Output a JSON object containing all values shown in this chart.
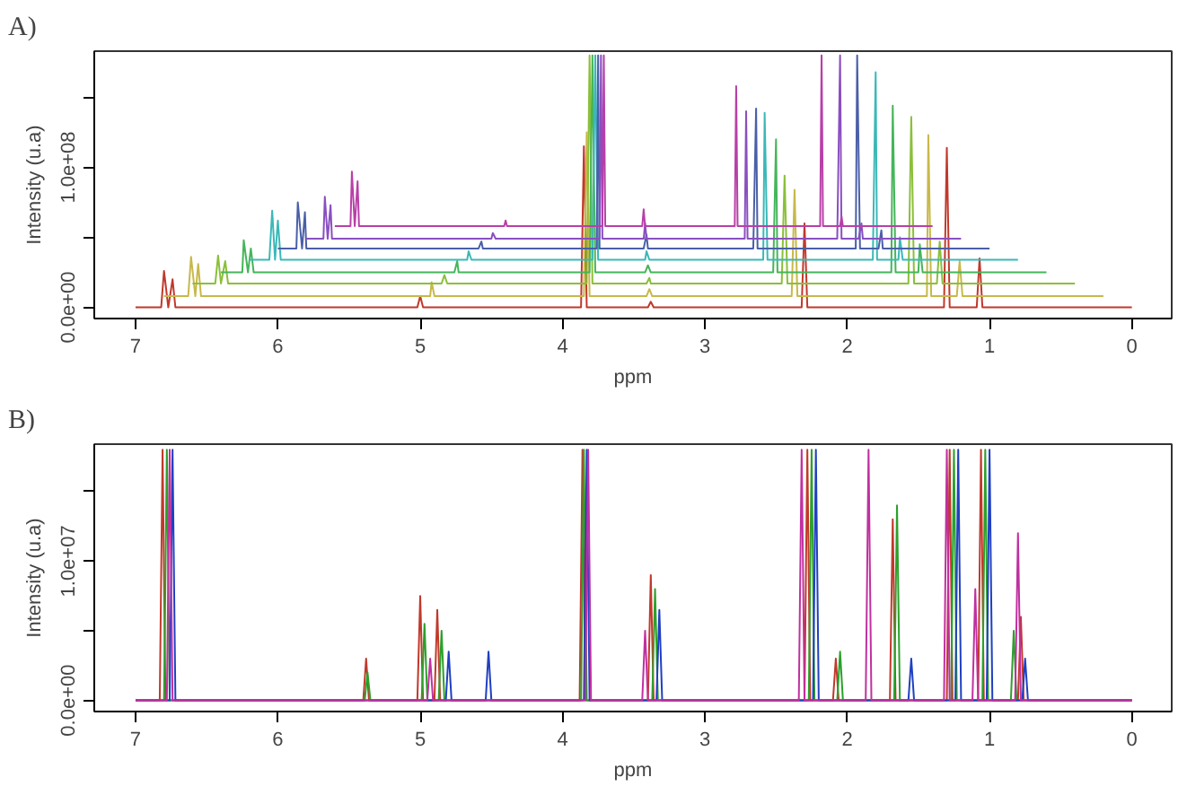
{
  "chart_data": [
    {
      "type": "line",
      "title": "A)",
      "xlabel": "ppm",
      "ylabel": "Intensity (u.a)",
      "xlim": [
        7.29,
        -0.28
      ],
      "ylim": [
        -8000000,
        183000000
      ],
      "xticks": [
        7,
        6,
        5,
        4,
        3,
        2,
        1,
        0
      ],
      "yticks": [
        {
          "value": 0,
          "label": "0.0e+00"
        },
        {
          "value": 50000000,
          "label": null
        },
        {
          "value": 100000000,
          "label": "1.0e+08"
        },
        {
          "value": 150000000,
          "label": null
        }
      ],
      "series": [
        {
          "color": "#c0392b",
          "x": [
            7,
            6.82,
            6.8,
            6.77,
            6.74,
            6.72,
            5.02,
            5.0,
            4.98,
            3.87,
            3.85,
            3.83,
            3.4,
            3.38,
            3.36,
            2.32,
            2.3,
            2.28,
            1.32,
            1.3,
            1.28,
            1.09,
            1.07,
            1.05,
            0
          ],
          "values": [
            0,
            0,
            26000000.0,
            0,
            20000000.0,
            0,
            0,
            8000000.0,
            0,
            0,
            115000000.0,
            0,
            0,
            4000000.0,
            0,
            0,
            60000000.0,
            0,
            0,
            114000000.0,
            0,
            0,
            35000000.0,
            0,
            0
          ]
        },
        {
          "color": "#c8b84a",
          "x": [
            6.8,
            6.63,
            6.61,
            6.58,
            6.56,
            6.54,
            4.93,
            4.92,
            4.9,
            3.85,
            3.83,
            3.81,
            3.41,
            3.39,
            3.37,
            2.39,
            2.37,
            2.35,
            1.44,
            1.43,
            1.41,
            1.23,
            1.21,
            1.19,
            0.2
          ],
          "values": [
            8000000.0,
            8000000.0,
            36000000.0,
            8000000.0,
            31000000.0,
            8000000.0,
            8000000.0,
            18000000.0,
            8000000.0,
            8000000.0,
            125000000.0,
            8000000.0,
            8000000.0,
            13000000.0,
            8000000.0,
            8000000.0,
            84000000.0,
            8000000.0,
            8000000.0,
            123000000.0,
            8000000.0,
            8000000.0,
            33000000.0,
            8000000.0,
            8000000.0
          ]
        },
        {
          "color": "#8bbf3a",
          "x": [
            6.6,
            6.44,
            6.42,
            6.4,
            6.37,
            6.35,
            4.85,
            4.83,
            4.81,
            3.83,
            3.81,
            3.79,
            3.41,
            3.39,
            3.38,
            2.46,
            2.44,
            2.42,
            1.57,
            1.55,
            1.53,
            1.37,
            1.35,
            1.33,
            0.4
          ],
          "values": [
            17000000.0,
            17000000.0,
            37000000.0,
            17000000.0,
            33000000.0,
            17000000.0,
            17000000.0,
            23000000.0,
            17000000.0,
            17000000.0,
            180000000.0,
            17000000.0,
            17000000.0,
            21000000.0,
            17000000.0,
            17000000.0,
            94000000.0,
            17000000.0,
            17000000.0,
            136000000.0,
            17000000.0,
            17000000.0,
            47000000.0,
            17000000.0,
            17000000.0
          ]
        },
        {
          "color": "#45b55a",
          "x": [
            6.4,
            6.25,
            6.24,
            6.21,
            6.19,
            6.17,
            4.76,
            4.74,
            4.73,
            3.81,
            3.79,
            3.77,
            3.42,
            3.4,
            3.38,
            2.52,
            2.5,
            2.49,
            1.69,
            1.68,
            1.66,
            1.5,
            1.49,
            1.47,
            0.6
          ],
          "values": [
            25000000.0,
            25000000.0,
            48000000.0,
            25000000.0,
            42000000.0,
            25000000.0,
            25000000.0,
            33000000.0,
            25000000.0,
            25000000.0,
            180000000.0,
            25000000.0,
            25000000.0,
            30000000.0,
            25000000.0,
            25000000.0,
            120000000.0,
            25000000.0,
            25000000.0,
            144000000.0,
            25000000.0,
            25000000.0,
            45000000.0,
            25000000.0,
            25000000.0
          ]
        },
        {
          "color": "#3bb8b8",
          "x": [
            6.2,
            6.06,
            6.04,
            6.02,
            6.0,
            5.98,
            4.67,
            4.66,
            4.64,
            3.79,
            3.77,
            3.75,
            3.42,
            3.41,
            3.39,
            2.59,
            2.58,
            2.56,
            1.82,
            1.8,
            1.79,
            1.64,
            1.63,
            1.61,
            0.8
          ],
          "values": [
            34000000.0,
            34000000.0,
            69000000.0,
            34000000.0,
            62000000.0,
            34000000.0,
            34000000.0,
            40000000.0,
            34000000.0,
            34000000.0,
            180000000.0,
            34000000.0,
            34000000.0,
            40000000.0,
            34000000.0,
            34000000.0,
            139000000.0,
            34000000.0,
            34000000.0,
            168000000.0,
            34000000.0,
            34000000.0,
            50000000.0,
            34000000.0,
            34000000.0
          ]
        },
        {
          "color": "#4a5fa8",
          "x": [
            6.0,
            5.87,
            5.86,
            5.83,
            5.81,
            5.8,
            4.59,
            4.57,
            4.56,
            3.76,
            3.75,
            3.74,
            3.43,
            3.41,
            3.4,
            2.66,
            2.64,
            2.63,
            1.94,
            1.93,
            1.91,
            1.78,
            1.76,
            1.75,
            1.0
          ],
          "values": [
            42000000.0,
            42000000.0,
            75000000.0,
            42000000.0,
            68000000.0,
            42000000.0,
            42000000.0,
            47000000.0,
            42000000.0,
            42000000.0,
            180000000.0,
            42000000.0,
            42000000.0,
            52000000.0,
            42000000.0,
            42000000.0,
            142000000.0,
            42000000.0,
            42000000.0,
            180000000.0,
            42000000.0,
            42000000.0,
            55000000.0,
            42000000.0,
            42000000.0
          ]
        },
        {
          "color": "#8a4fc0",
          "x": [
            5.8,
            5.68,
            5.67,
            5.65,
            5.63,
            5.62,
            4.5,
            4.49,
            4.47,
            3.74,
            3.73,
            3.72,
            3.43,
            3.42,
            3.41,
            2.72,
            2.71,
            2.7,
            2.07,
            2.05,
            2.04,
            1.92,
            1.9,
            1.89,
            1.2
          ],
          "values": [
            49000000.0,
            49000000.0,
            79000000.0,
            49000000.0,
            73000000.0,
            49000000.0,
            49000000.0,
            53000000.0,
            49000000.0,
            49000000.0,
            180000000.0,
            49000000.0,
            49000000.0,
            60000000.0,
            49000000.0,
            49000000.0,
            140000000.0,
            49000000.0,
            49000000.0,
            180000000.0,
            49000000.0,
            49000000.0,
            60000000.0,
            49000000.0,
            49000000.0
          ]
        },
        {
          "color": "#b83fa8",
          "x": [
            5.6,
            5.49,
            5.48,
            5.46,
            5.44,
            5.43,
            4.41,
            4.4,
            4.39,
            3.72,
            3.71,
            3.7,
            3.44,
            3.43,
            3.42,
            2.79,
            2.78,
            2.77,
            2.19,
            2.18,
            2.17,
            2.05,
            2.04,
            2.03,
            1.4
          ],
          "values": [
            58000000.0,
            58000000.0,
            97000000.0,
            58000000.0,
            90000000.0,
            58000000.0,
            58000000.0,
            62000000.0,
            58000000.0,
            58000000.0,
            180000000.0,
            58000000.0,
            58000000.0,
            70000000.0,
            58000000.0,
            58000000.0,
            158000000.0,
            58000000.0,
            58000000.0,
            180000000.0,
            58000000.0,
            58000000.0,
            65000000.0,
            58000000.0,
            58000000.0
          ]
        }
      ]
    },
    {
      "type": "line",
      "title": "B)",
      "xlabel": "ppm",
      "ylabel": "Intensity (u.a)",
      "xlim": [
        7.29,
        -0.28
      ],
      "ylim": [
        -800000,
        18400000
      ],
      "xticks": [
        7,
        6,
        5,
        4,
        3,
        2,
        1,
        0
      ],
      "yticks": [
        {
          "value": 0,
          "label": "0.0e+00"
        },
        {
          "value": 5000000,
          "label": null
        },
        {
          "value": 10000000,
          "label": "1.0e+07"
        },
        {
          "value": 15000000,
          "label": null
        }
      ],
      "series": [
        {
          "color": "#c0392b",
          "x": [
            7,
            6.83,
            6.81,
            6.79,
            5.4,
            5.38,
            5.36,
            5.02,
            5.0,
            4.98,
            4.9,
            4.88,
            4.86,
            3.88,
            3.86,
            3.84,
            3.4,
            3.38,
            3.36,
            2.3,
            2.28,
            2.26,
            2.1,
            2.08,
            2.06,
            1.7,
            1.68,
            1.66,
            1.3,
            1.28,
            1.26,
            1.08,
            1.06,
            1.04,
            0.8,
            0.78,
            0.76,
            0
          ],
          "values": [
            0,
            0,
            18000000.0,
            0,
            0,
            3000000.0,
            0,
            0,
            7500000.0,
            0,
            0,
            6500000.0,
            0,
            0,
            18000000.0,
            0,
            0,
            9000000.0,
            0,
            0,
            18000000.0,
            0,
            0,
            3000000.0,
            0,
            0,
            13000000.0,
            0,
            0,
            18000000.0,
            0,
            0,
            18000000.0,
            0,
            0,
            6000000.0,
            0,
            0
          ]
        },
        {
          "color": "#2ca02c",
          "x": [
            7,
            6.8,
            6.78,
            6.76,
            5.39,
            5.37,
            5.35,
            4.99,
            4.97,
            4.95,
            4.87,
            4.85,
            4.83,
            3.87,
            3.85,
            3.83,
            3.37,
            3.35,
            3.33,
            2.27,
            2.25,
            2.23,
            2.07,
            2.05,
            2.03,
            1.67,
            1.65,
            1.63,
            1.27,
            1.25,
            1.23,
            1.05,
            1.03,
            1.01,
            0.85,
            0.83,
            0.81,
            0
          ],
          "values": [
            0,
            0,
            18000000.0,
            0,
            0,
            2000000.0,
            0,
            0,
            5500000.0,
            0,
            0,
            5000000.0,
            0,
            0,
            18000000.0,
            0,
            0,
            8000000.0,
            0,
            0,
            18000000.0,
            0,
            0,
            3500000.0,
            0,
            0,
            14000000.0,
            0,
            0,
            18000000.0,
            0,
            0,
            18000000.0,
            0,
            0,
            5000000.0,
            0,
            0
          ]
        },
        {
          "color": "#2040c0",
          "x": [
            7,
            6.76,
            6.74,
            6.72,
            4.82,
            4.8,
            4.78,
            4.54,
            4.52,
            4.5,
            3.85,
            3.83,
            3.81,
            3.34,
            3.32,
            3.3,
            2.24,
            2.22,
            2.2,
            1.57,
            1.55,
            1.53,
            1.24,
            1.22,
            1.2,
            1.02,
            1.0,
            0.98,
            0.77,
            0.75,
            0.73,
            0
          ],
          "values": [
            0,
            0,
            18000000.0,
            0,
            0,
            3500000.0,
            0,
            0,
            3500000.0,
            0,
            0,
            18000000.0,
            0,
            0,
            6500000.0,
            0,
            0,
            18000000.0,
            0,
            0,
            3000000.0,
            0,
            0,
            18000000.0,
            0,
            0,
            18000000.0,
            0,
            0,
            3000000.0,
            0,
            0
          ]
        },
        {
          "color": "#c030a0",
          "x": [
            7,
            6.78,
            6.76,
            6.74,
            4.95,
            4.93,
            4.91,
            3.84,
            3.82,
            3.8,
            3.44,
            3.42,
            3.4,
            2.34,
            2.32,
            2.3,
            1.87,
            1.85,
            1.83,
            1.32,
            1.3,
            1.28,
            1.12,
            1.1,
            1.08,
            0.82,
            0.8,
            0.78,
            0
          ],
          "values": [
            0,
            0,
            18000000.0,
            0,
            0,
            3000000.0,
            0,
            0,
            18000000.0,
            0,
            0,
            5000000.0,
            0,
            0,
            18000000.0,
            0,
            0,
            18000000.0,
            0,
            0,
            18000000.0,
            0,
            0,
            8000000.0,
            0,
            0,
            12000000.0,
            0,
            0
          ]
        }
      ]
    }
  ]
}
